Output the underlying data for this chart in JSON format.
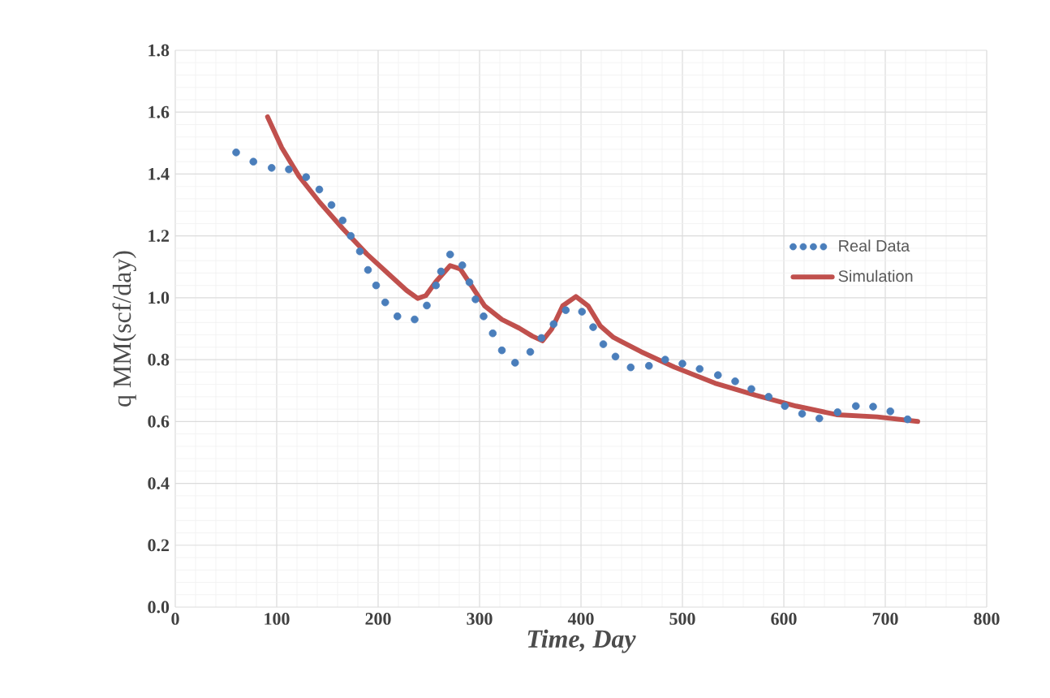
{
  "chart_data": {
    "type": "line",
    "xlabel": "Time, Day",
    "ylabel": "q MM(scf/day)",
    "xlim": [
      0,
      800
    ],
    "xticks": [
      0,
      100,
      200,
      300,
      400,
      500,
      600,
      700,
      800
    ],
    "ylim": [
      0,
      1.8
    ],
    "yticks": [
      {
        "value": 0,
        "label": "0.0"
      },
      0.2,
      0.4,
      0.6,
      0.8,
      {
        "value": 1,
        "label": "1.0"
      },
      1.2,
      1.4,
      1.6,
      1.8
    ],
    "grid": true,
    "legend": "right",
    "series": [
      {
        "name": "Real Data",
        "type": "scatter",
        "marker": "circle",
        "color": "#4a7ebb",
        "x": [
          60,
          77,
          95,
          112,
          129,
          142,
          154,
          165,
          173,
          182,
          190,
          198,
          207,
          219,
          236,
          248,
          257,
          262,
          271,
          283,
          290,
          296,
          304,
          313,
          322,
          335,
          350,
          361,
          373,
          385,
          401,
          412,
          422,
          434,
          449,
          467,
          483,
          500,
          517,
          535,
          552,
          568,
          585,
          601,
          618,
          635,
          653,
          671,
          688,
          705,
          722
        ],
        "values": [
          1.47,
          1.44,
          1.42,
          1.415,
          1.39,
          1.35,
          1.3,
          1.25,
          1.2,
          1.15,
          1.09,
          1.04,
          0.985,
          0.94,
          0.93,
          0.975,
          1.04,
          1.085,
          1.14,
          1.105,
          1.05,
          0.995,
          0.94,
          0.885,
          0.83,
          0.79,
          0.825,
          0.87,
          0.915,
          0.96,
          0.955,
          0.905,
          0.85,
          0.81,
          0.775,
          0.78,
          0.8,
          0.787,
          0.77,
          0.75,
          0.73,
          0.705,
          0.68,
          0.65,
          0.625,
          0.61,
          0.63,
          0.65,
          0.648,
          0.633,
          0.607
        ]
      },
      {
        "name": "Simulation",
        "marker": "none",
        "line_style": "solid",
        "color": "#c0504d",
        "x": [
          91,
          105,
          122,
          142,
          165,
          189,
          212,
          228,
          239,
          247,
          257,
          271,
          281,
          292,
          305,
          322,
          339,
          352,
          362,
          371,
          382,
          395,
          407,
          419,
          432,
          459,
          492,
          532,
          572,
          612,
          652,
          692,
          732
        ],
        "values": [
          1.585,
          1.485,
          1.393,
          1.31,
          1.224,
          1.141,
          1.072,
          1.024,
          0.998,
          1.007,
          1.052,
          1.104,
          1.093,
          1.039,
          0.974,
          0.93,
          0.902,
          0.876,
          0.861,
          0.898,
          0.974,
          1.004,
          0.974,
          0.909,
          0.872,
          0.826,
          0.776,
          0.724,
          0.685,
          0.65,
          0.622,
          0.615,
          0.6
        ]
      }
    ]
  }
}
